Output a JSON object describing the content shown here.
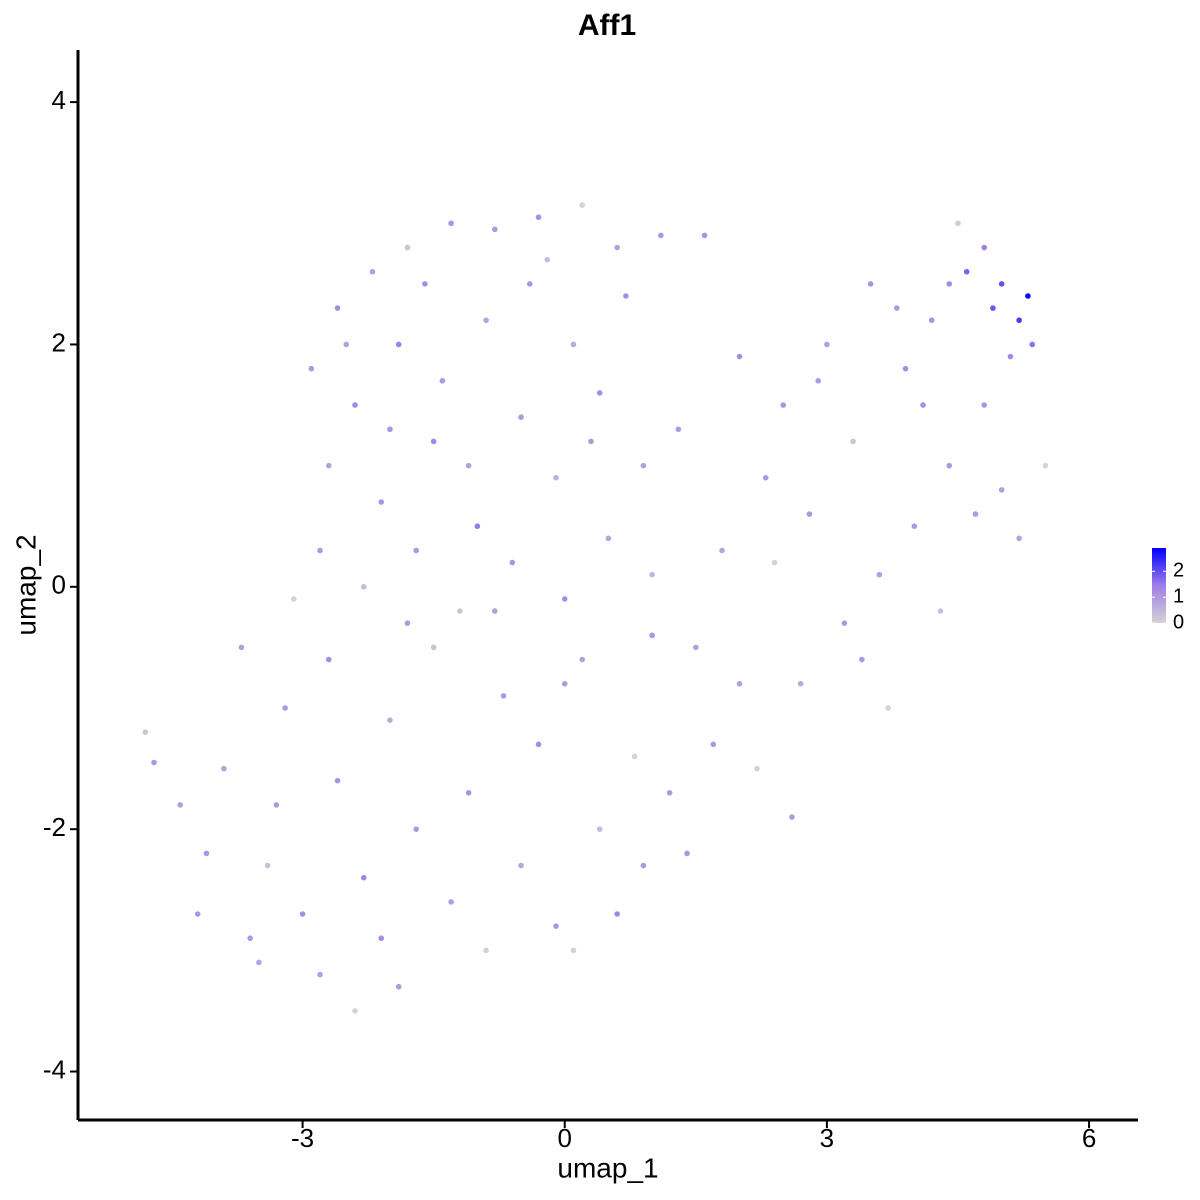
{
  "chart_data": {
    "type": "scatter",
    "title": "Aff1",
    "xlabel": "umap_1",
    "ylabel": "umap_2",
    "xlim": [
      -5.57,
      6.56
    ],
    "xticks": [
      -3,
      0,
      3,
      6
    ],
    "ylim": [
      -4.4,
      4.43
    ],
    "yticks": [
      -4,
      -2,
      0,
      2,
      4
    ],
    "color_stops": [
      "#d3d3d3",
      "#a07ee8",
      "#0000ff"
    ],
    "colorbar": {
      "lim": [
        0,
        2.9
      ],
      "ticks": [
        0,
        1,
        2
      ]
    },
    "x": [
      -2.9,
      -2.6,
      -2.2,
      -1.8,
      -1.3,
      -0.8,
      -0.3,
      0.2,
      0.6,
      1.1,
      -2.4,
      -1.9,
      -1.4,
      -0.9,
      -0.4,
      0.1,
      0.7,
      -2.7,
      -2.1,
      -1.5,
      -1.0,
      -0.5,
      -0.1,
      0.4,
      0.9,
      -2.8,
      -2.3,
      -1.7,
      -1.2,
      -0.6,
      0.0,
      0.5,
      1.0,
      -3.1,
      -2.5,
      -1.6,
      -0.2,
      0.3,
      -1.1,
      -2.0,
      -4.8,
      -4.7,
      -4.4,
      -4.1,
      -3.9,
      -3.6,
      -3.4,
      -3.2,
      -3.0,
      -2.8,
      -2.6,
      -2.4,
      -2.3,
      -2.1,
      -1.9,
      -2.0,
      -1.7,
      -1.5,
      -1.3,
      -1.1,
      -0.9,
      -0.7,
      -0.5,
      -0.3,
      -0.1,
      0.1,
      0.2,
      0.4,
      0.6,
      0.8,
      0.9,
      1.0,
      -3.7,
      -3.3,
      -2.7,
      -1.8,
      -0.8,
      0.0,
      -4.2,
      -3.5,
      1.3,
      1.5,
      1.6,
      1.8,
      2.0,
      2.2,
      2.3,
      2.5,
      2.7,
      2.8,
      3.0,
      3.2,
      3.3,
      3.5,
      3.6,
      3.7,
      3.9,
      4.0,
      4.2,
      4.3,
      4.4,
      4.5,
      4.6,
      4.7,
      4.8,
      4.9,
      5.0,
      5.1,
      5.2,
      5.3,
      5.35,
      5.2,
      1.2,
      1.4,
      1.7,
      2.0,
      2.4,
      2.9,
      3.4,
      4.1,
      4.8,
      5.0,
      3.8,
      4.4,
      2.6,
      5.5
    ],
    "series": [
      {
        "values": [
          1.8,
          2.3,
          2.6,
          2.8,
          3.0,
          2.95,
          3.05,
          3.15,
          2.8,
          2.9,
          1.5,
          2.0,
          1.7,
          2.2,
          2.5,
          2.0,
          2.4,
          1.0,
          0.7,
          1.2,
          0.5,
          1.4,
          0.9,
          1.6,
          1.0,
          0.3,
          0.0,
          0.3,
          -0.2,
          0.2,
          -0.1,
          0.4,
          0.1,
          -0.1,
          2.0,
          2.5,
          2.7,
          1.2,
          1.0,
          1.3,
          -1.2,
          -1.45,
          -1.8,
          -2.2,
          -1.5,
          -2.9,
          -2.3,
          -1.0,
          -2.7,
          -3.2,
          -1.6,
          -3.5,
          -2.4,
          -2.9,
          -3.3,
          -1.1,
          -2.0,
          -0.5,
          -2.6,
          -1.7,
          -3.0,
          -0.9,
          -2.3,
          -1.3,
          -2.8,
          -3.0,
          -0.6,
          -2.0,
          -2.7,
          -1.4,
          -2.3,
          -0.4,
          -0.5,
          -1.8,
          -0.6,
          -0.3,
          -0.2,
          -0.8,
          -2.7,
          -3.1,
          1.3,
          -0.5,
          2.9,
          0.3,
          1.9,
          -1.5,
          0.9,
          1.5,
          -0.8,
          0.6,
          2.0,
          -0.3,
          1.2,
          2.5,
          0.1,
          -1.0,
          1.8,
          0.5,
          2.2,
          -0.2,
          1.0,
          3.0,
          2.6,
          0.6,
          1.5,
          2.3,
          0.8,
          1.9,
          2.2,
          2.4,
          2.0,
          0.4,
          -1.7,
          -2.2,
          -1.3,
          -0.8,
          0.2,
          1.7,
          -0.6,
          1.5,
          2.8,
          2.5,
          2.3,
          2.5,
          -1.9,
          1.0
        ],
        "expression": [
          1.0,
          1.2,
          0.9,
          0.3,
          1.1,
          1.0,
          1.2,
          0.0,
          0.9,
          1.1,
          1.3,
          1.4,
          1.0,
          0.8,
          1.1,
          0.7,
          1.2,
          0.8,
          1.1,
          1.3,
          1.5,
          1.0,
          0.6,
          1.2,
          0.9,
          1.0,
          0.4,
          1.0,
          0.2,
          1.1,
          1.2,
          0.8,
          0.5,
          0.0,
          0.9,
          1.2,
          0.4,
          1.0,
          0.9,
          1.1,
          0.2,
          1.0,
          0.9,
          1.1,
          0.8,
          1.0,
          0.3,
          1.0,
          1.2,
          0.9,
          1.1,
          0.0,
          1.3,
          1.2,
          1.0,
          0.7,
          1.0,
          0.3,
          0.9,
          1.1,
          0.0,
          1.0,
          0.8,
          1.2,
          1.1,
          0.0,
          0.9,
          0.4,
          1.3,
          0.0,
          1.0,
          1.1,
          0.9,
          1.0,
          1.2,
          1.0,
          0.9,
          1.0,
          1.0,
          0.8,
          1.0,
          0.9,
          1.1,
          0.8,
          1.2,
          0.0,
          1.0,
          1.1,
          0.7,
          1.0,
          0.9,
          1.0,
          0.2,
          1.1,
          0.9,
          0.0,
          1.2,
          1.0,
          1.1,
          0.3,
          1.0,
          0.1,
          1.8,
          1.0,
          1.1,
          1.9,
          0.9,
          1.3,
          2.2,
          2.8,
          1.6,
          0.8,
          1.0,
          1.1,
          1.0,
          0.9,
          0.0,
          1.0,
          1.0,
          1.2,
          1.4,
          2.0,
          1.0,
          1.3,
          1.0,
          0.0
        ]
      }
    ]
  }
}
